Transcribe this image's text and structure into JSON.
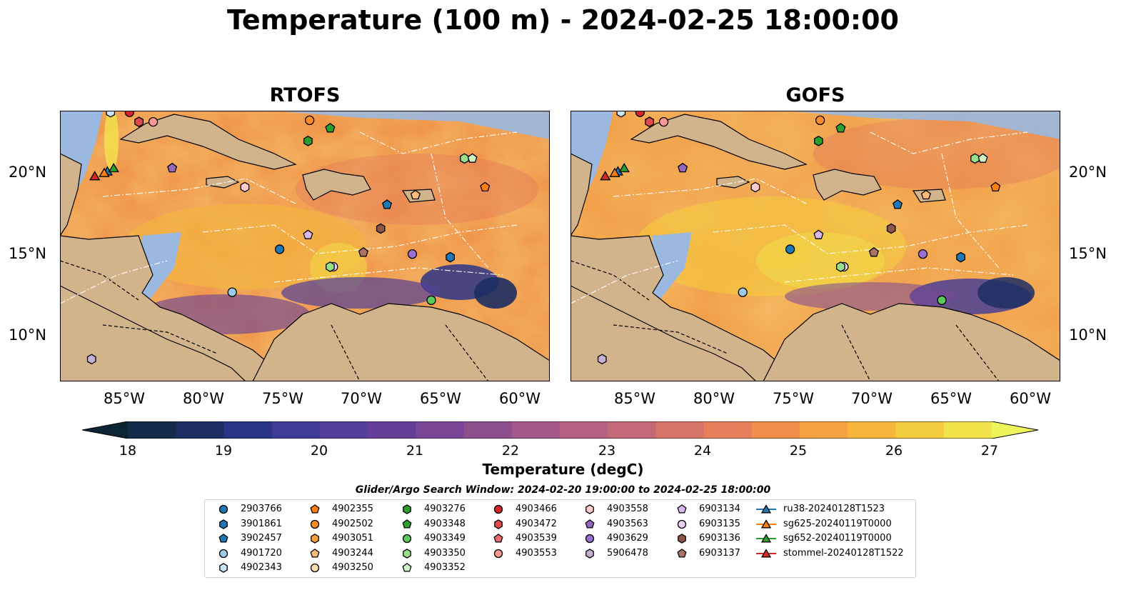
{
  "title": "Temperature (100 m) - 2024-02-25 18:00:00",
  "panels": [
    {
      "title": "RTOFS"
    },
    {
      "title": "GOFS"
    }
  ],
  "axes": {
    "lon_ticks": [
      "85°W",
      "80°W",
      "75°W",
      "70°W",
      "65°W",
      "60°W"
    ],
    "lat_ticks": [
      "20°N",
      "15°N",
      "10°N"
    ]
  },
  "colorbar": {
    "label": "Temperature (degC)",
    "ticks": [
      "18",
      "19",
      "20",
      "21",
      "22",
      "23",
      "24",
      "25",
      "26",
      "27"
    ],
    "colors": [
      "#0b2434",
      "#132a48",
      "#1c2e63",
      "#2b3586",
      "#3e3a98",
      "#523f99",
      "#653f97",
      "#7a4797",
      "#8e508d",
      "#a35889",
      "#b56181",
      "#c56979",
      "#d77468",
      "#e7805a",
      "#f08f4b",
      "#f4a23f",
      "#f6b63b",
      "#f3cc3d",
      "#f2e34a"
    ]
  },
  "legend": {
    "title": "Glider/Argo Search Window: 2024-02-20 19:00:00 to 2024-02-25 18:00:00",
    "items": [
      {
        "label": "2903766",
        "marker": "circle",
        "color": "#1f77b4"
      },
      {
        "label": "3901861",
        "marker": "hexagon",
        "color": "#1f77b4"
      },
      {
        "label": "3902457",
        "marker": "pentagon",
        "color": "#1f77b4"
      },
      {
        "label": "4901720",
        "marker": "circle",
        "color": "#9ecae9"
      },
      {
        "label": "4902343",
        "marker": "hexagon",
        "color": "#c7e4f8"
      },
      {
        "label": "4902355",
        "marker": "pentagon",
        "color": "#ff7f0e"
      },
      {
        "label": "4902502",
        "marker": "circle",
        "color": "#ff8c2a"
      },
      {
        "label": "4903051",
        "marker": "hexagon",
        "color": "#ffa040"
      },
      {
        "label": "4903244",
        "marker": "pentagon",
        "color": "#ffbb78"
      },
      {
        "label": "4903250",
        "marker": "circle",
        "color": "#ffdcb4"
      },
      {
        "label": "4903276",
        "marker": "hexagon",
        "color": "#2ca02c"
      },
      {
        "label": "4903348",
        "marker": "pentagon",
        "color": "#2ca02c"
      },
      {
        "label": "4903349",
        "marker": "circle",
        "color": "#5cc85c"
      },
      {
        "label": "4903350",
        "marker": "hexagon",
        "color": "#98df8a"
      },
      {
        "label": "4903352",
        "marker": "pentagon",
        "color": "#cdf2c4"
      },
      {
        "label": "4903466",
        "marker": "circle",
        "color": "#d62728"
      },
      {
        "label": "4903472",
        "marker": "hexagon",
        "color": "#e04a4a"
      },
      {
        "label": "4903539",
        "marker": "pentagon",
        "color": "#e96a6a"
      },
      {
        "label": "4903553",
        "marker": "circle",
        "color": "#ff9896"
      },
      {
        "label": "4903558",
        "marker": "hexagon",
        "color": "#ffcccb"
      },
      {
        "label": "4903563",
        "marker": "pentagon",
        "color": "#9467bd"
      },
      {
        "label": "4903629",
        "marker": "circle",
        "color": "#9b6fd0"
      },
      {
        "label": "5906478",
        "marker": "hexagon",
        "color": "#c5b0d5"
      },
      {
        "label": "6903134",
        "marker": "pentagon",
        "color": "#d9b8f0"
      },
      {
        "label": "6903135",
        "marker": "circle",
        "color": "#ecd0f8"
      },
      {
        "label": "6903136",
        "marker": "hexagon",
        "color": "#8c564b"
      },
      {
        "label": "6903137",
        "marker": "pentagon",
        "color": "#a87466"
      },
      {
        "label": "ru38-20240128T1523",
        "marker": "triangle",
        "color": "#1f77b4"
      },
      {
        "label": "sg625-20240119T0000",
        "marker": "triangle",
        "color": "#ff7f0e"
      },
      {
        "label": "sg652-20240119T0000",
        "marker": "triangle",
        "color": "#2ca02c"
      },
      {
        "label": "stommel-20240128T1522",
        "marker": "triangle",
        "color": "#d62728"
      }
    ]
  },
  "map_extent": {
    "lon": [
      -89,
      -58
    ],
    "lat": [
      7,
      24
    ]
  },
  "observations": [
    {
      "id": "2903766",
      "lon": -75.1,
      "lat": 15.3
    },
    {
      "id": "3901861",
      "lon": -64.3,
      "lat": 14.8
    },
    {
      "id": "3902457",
      "lon": -68.3,
      "lat": 18.1
    },
    {
      "id": "4901720",
      "lon": -78.1,
      "lat": 12.6
    },
    {
      "id": "4902343",
      "lon": -85.8,
      "lat": 23.9
    },
    {
      "id": "4902355",
      "lon": -62.1,
      "lat": 19.2
    },
    {
      "id": "4902502",
      "lon": -73.2,
      "lat": 23.4
    },
    {
      "id": "4903244",
      "lon": -66.5,
      "lat": 18.7
    },
    {
      "id": "4903276",
      "lon": -73.3,
      "lat": 22.1
    },
    {
      "id": "4903348",
      "lon": -71.9,
      "lat": 22.9
    },
    {
      "id": "4903349",
      "lon": -65.5,
      "lat": 12.1
    },
    {
      "id": "4903350",
      "lon": -63.4,
      "lat": 21.0
    },
    {
      "id": "4903352",
      "lon": -62.9,
      "lat": 21.0
    },
    {
      "id": "4903466",
      "lon": -84.6,
      "lat": 23.9
    },
    {
      "id": "4903472",
      "lon": -84.0,
      "lat": 23.3
    },
    {
      "id": "4903553",
      "lon": -83.1,
      "lat": 23.3
    },
    {
      "id": "4903558",
      "lon": -77.3,
      "lat": 19.2
    },
    {
      "id": "4903563",
      "lon": -81.9,
      "lat": 20.4
    },
    {
      "id": "4903629",
      "lon": -66.7,
      "lat": 15.0
    },
    {
      "id": "5906478",
      "lon": -87.0,
      "lat": 8.4
    },
    {
      "id": "6903134",
      "lon": -73.3,
      "lat": 16.2
    },
    {
      "id": "6903135",
      "lon": -71.7,
      "lat": 14.2
    },
    {
      "id": "6903136",
      "lon": -68.7,
      "lat": 16.6
    },
    {
      "id": "6903137",
      "lon": -69.8,
      "lat": 15.1
    },
    {
      "id": "4903350",
      "lon": -71.9,
      "lat": 14.2
    },
    {
      "id": "ru38-20240128T1523",
      "lon": -86.0,
      "lat": 20.2
    },
    {
      "id": "sg625-20240119T0000",
      "lon": -86.2,
      "lat": 20.1
    },
    {
      "id": "sg652-20240119T0000",
      "lon": -85.6,
      "lat": 20.4
    },
    {
      "id": "stommel-20240128T1522",
      "lon": -86.8,
      "lat": 19.9
    }
  ]
}
